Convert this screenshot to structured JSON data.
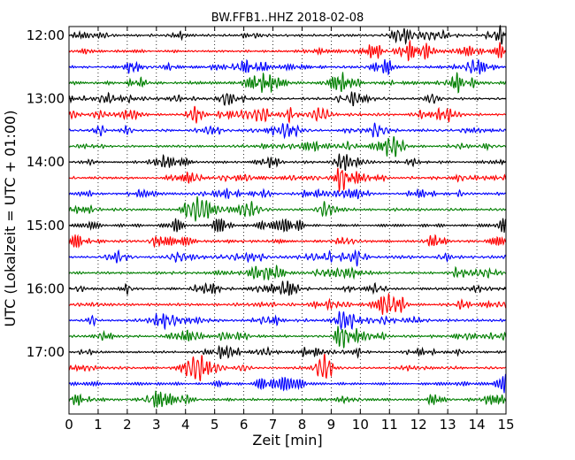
{
  "chart_data": {
    "type": "line",
    "subtype": "dayplot",
    "title": "BW.FFB1..HHZ 2018-02-08",
    "xlabel": "Zeit  [min]",
    "ylabel": "UTC (Lokalzeit = UTC + 01:00)",
    "xlim": [
      0,
      15
    ],
    "x_ticks": [
      "0",
      "1",
      "2",
      "3",
      "4",
      "5",
      "6",
      "7",
      "8",
      "9",
      "10",
      "11",
      "12",
      "13",
      "14",
      "15"
    ],
    "y_ticks": [
      "12:00",
      "13:00",
      "14:00",
      "15:00",
      "16:00",
      "17:00"
    ],
    "start_time": "12:00",
    "interval_minutes": 15,
    "row_count": 24,
    "vertical_grid": "dotted",
    "colors": [
      "#000000",
      "#ff0000",
      "#0000ff",
      "#007f00"
    ]
  }
}
